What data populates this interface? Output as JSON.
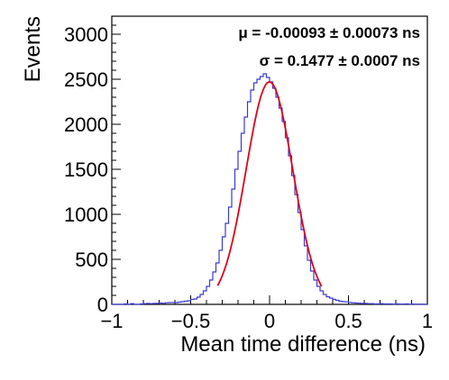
{
  "chart_data": {
    "type": "histogram",
    "title": "",
    "xlabel": "Mean time difference (ns)",
    "ylabel": "Events",
    "xlim": [
      -1,
      1
    ],
    "ylim": [
      0,
      3200
    ],
    "x_major_ticks": [
      -1,
      -0.5,
      0,
      0.5,
      1
    ],
    "x_tick_labels": [
      "−1",
      "−0.5",
      "0",
      "0.5",
      "1"
    ],
    "y_major_ticks": [
      0,
      500,
      1000,
      1500,
      2000,
      2500,
      3000
    ],
    "y_tick_labels": [
      "0",
      "500",
      "1000",
      "1500",
      "2000",
      "2500",
      "3000"
    ],
    "bin_width": 0.02,
    "histogram": {
      "color": "#3a3ad0",
      "bin_lower_edges": [
        -1.0,
        -0.98,
        -0.96,
        -0.94,
        -0.92,
        -0.9,
        -0.88,
        -0.86,
        -0.84,
        -0.82,
        -0.8,
        -0.78,
        -0.76,
        -0.74,
        -0.72,
        -0.7,
        -0.68,
        -0.66,
        -0.64,
        -0.62,
        -0.6,
        -0.58,
        -0.56,
        -0.54,
        -0.52,
        -0.5,
        -0.48,
        -0.46,
        -0.44,
        -0.42,
        -0.4,
        -0.38,
        -0.36,
        -0.34,
        -0.32,
        -0.3,
        -0.28,
        -0.26,
        -0.24,
        -0.22,
        -0.2,
        -0.18,
        -0.16,
        -0.14,
        -0.12,
        -0.1,
        -0.08,
        -0.06,
        -0.04,
        -0.02,
        0.0,
        0.02,
        0.04,
        0.06,
        0.08,
        0.1,
        0.12,
        0.14,
        0.16,
        0.18,
        0.2,
        0.22,
        0.24,
        0.26,
        0.28,
        0.3,
        0.32,
        0.34,
        0.36,
        0.38,
        0.4,
        0.42,
        0.44,
        0.46,
        0.48,
        0.5,
        0.52,
        0.54,
        0.56,
        0.58,
        0.6,
        0.62,
        0.64,
        0.66,
        0.68,
        0.7,
        0.72,
        0.74,
        0.76,
        0.78,
        0.8,
        0.82,
        0.84,
        0.86,
        0.88,
        0.9,
        0.92,
        0.94,
        0.96,
        0.98
      ],
      "counts": [
        0,
        0,
        0,
        0,
        5,
        0,
        8,
        0,
        0,
        5,
        8,
        10,
        8,
        10,
        12,
        15,
        12,
        18,
        20,
        20,
        20,
        25,
        30,
        35,
        40,
        55,
        60,
        80,
        110,
        150,
        200,
        270,
        360,
        460,
        600,
        750,
        900,
        1080,
        1280,
        1500,
        1700,
        1900,
        2080,
        2250,
        2380,
        2460,
        2500,
        2530,
        2560,
        2520,
        2470,
        2400,
        2300,
        2180,
        2030,
        1850,
        1650,
        1430,
        1220,
        1020,
        830,
        650,
        490,
        370,
        270,
        200,
        150,
        110,
        85,
        70,
        55,
        45,
        35,
        30,
        28,
        22,
        18,
        15,
        13,
        10,
        10,
        8,
        8,
        5,
        5,
        8,
        5,
        5,
        5,
        3,
        5,
        3,
        3,
        5,
        2,
        3,
        2,
        2,
        2,
        0
      ]
    },
    "fit": {
      "color": "#e0001b",
      "function": "gaussian",
      "amplitude": 2470,
      "mean": -0.00093,
      "sigma": 0.1477,
      "x_range": [
        -0.33,
        0.33
      ]
    },
    "annotations": [
      {
        "text": "μ = -0.00093 ± 0.00073 ns"
      },
      {
        "text": "σ = 0.1477 ± 0.0007 ns"
      }
    ]
  }
}
